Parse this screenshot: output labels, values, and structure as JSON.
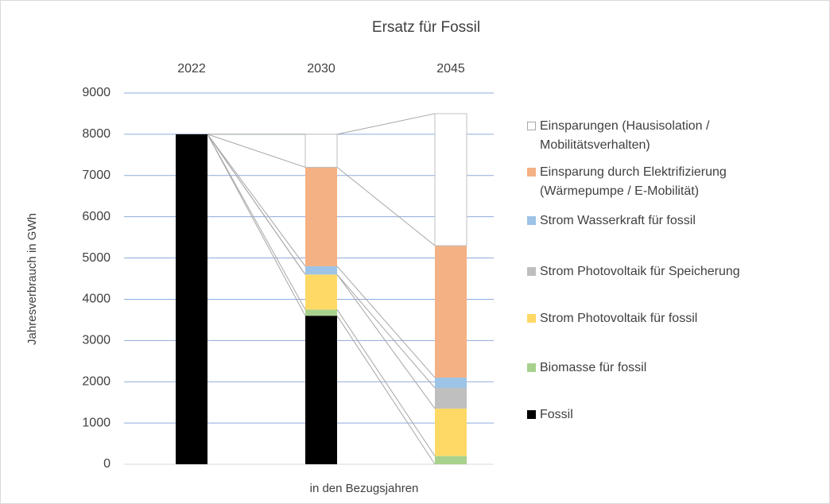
{
  "chart_data": {
    "type": "stacked_bar",
    "title": "Ersatz für Fossil",
    "y_label": "Jahresverbrauch in GWh",
    "x_label": "in den Bezugsjahren",
    "categories": [
      "2022",
      "2030",
      "2045"
    ],
    "ylim": [
      0,
      9000
    ],
    "yticks": [
      0,
      1000,
      2000,
      3000,
      4000,
      5000,
      6000,
      7000,
      8000,
      9000
    ],
    "grid": true,
    "series": [
      {
        "name": "Fossil",
        "color": "#000000",
        "values": [
          8000,
          3600,
          0
        ]
      },
      {
        "name": "Biomasse für fossil",
        "color": "#a9d18e",
        "values": [
          0,
          150,
          200
        ]
      },
      {
        "name": "Strom Photovoltaik für fossil",
        "color": "#ffd966",
        "values": [
          0,
          850,
          1150
        ]
      },
      {
        "name": "Strom Photovoltaik für Speicherung",
        "color": "#bfbfbf",
        "values": [
          0,
          0,
          500
        ]
      },
      {
        "name": "Strom Wasserkraft für fossil",
        "color": "#9dc3e6",
        "values": [
          0,
          200,
          250
        ]
      },
      {
        "name": "Einsparung durch Elektrifizierung (Wärmepumpe / E-Mobilität)",
        "color": "#f4b183",
        "values": [
          0,
          2400,
          3200
        ]
      },
      {
        "name": "Einsparungen  (Hausisolation / Mobilitätsverhalten)",
        "color": "#ffffff",
        "values": [
          0,
          800,
          3200
        ]
      }
    ]
  }
}
